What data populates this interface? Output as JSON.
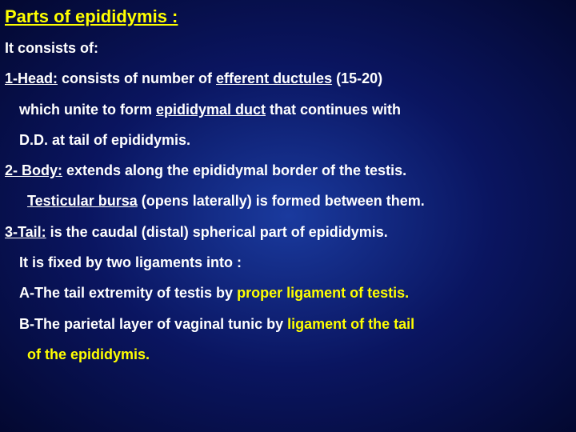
{
  "title_fontsize": 22,
  "body_fontsize": 18,
  "colors": {
    "title": "#ffff00",
    "white": "#ffffff",
    "yellow": "#ffff00",
    "bg_center": "#1a3a9e",
    "bg_mid": "#0a1560",
    "bg_edge": "#030830"
  },
  "title": "Parts of epididymis :",
  "l1": "It consists of:",
  "l2a": "1-Head:",
  "l2b": " consists of  number of ",
  "l2c": "efferent ductules",
  "l2d": " (15-20)",
  "l3a": "which unite to form ",
  "l3b": "epididymal duct",
  "l3c": " that continues with",
  "l4": "D.D. at tail of epididymis.",
  "l5a": "2- Body:",
  "l5b": " extends along the epididymal border of the testis.",
  "l6a": "Testicular bursa",
  "l6b": " (opens laterally) is formed between them.",
  "l7a": "3-Tail:",
  "l7b": " is the caudal (distal) spherical part of epididymis.",
  "l8": "It is fixed by two ligaments into :",
  "l9a": "A-The tail extremity of  testis by ",
  "l9b": "proper ligament of testis.",
  "l10a": "B-The parietal layer of vaginal tunic by ",
  "l10b": "ligament of the tail",
  "l11": "of the epididymis."
}
